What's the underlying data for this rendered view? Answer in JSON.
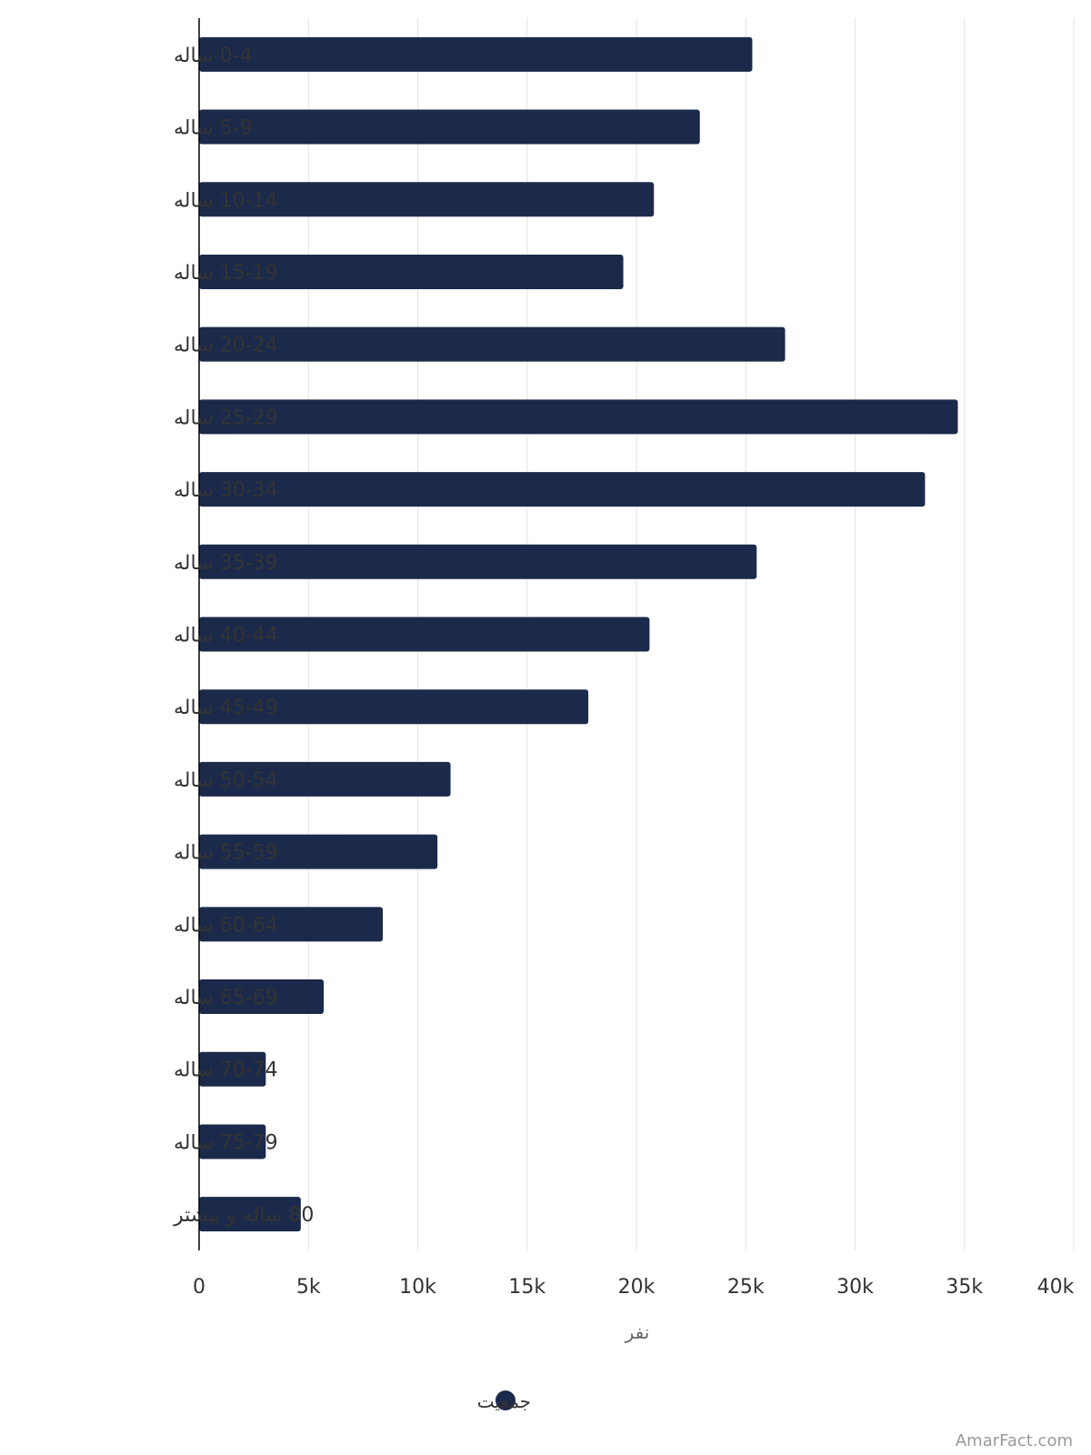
{
  "chart_data": {
    "type": "bar",
    "orientation": "horizontal",
    "categories": [
      "0-4 ساله",
      "5-9 ساله",
      "10-14 ساله",
      "15-19 ساله",
      "20-24 ساله",
      "25-29 ساله",
      "30-34 ساله",
      "35-39 ساله",
      "40-44 ساله",
      "45-49 ساله",
      "50-54 ساله",
      "55-59 ساله",
      "60-64 ساله",
      "65-69 ساله",
      "70-74 ساله",
      "75-79 ساله",
      "80 ساله و بیشتر"
    ],
    "series": [
      {
        "name": "جمعیت",
        "color": "#1b2a4a",
        "values": [
          25300,
          22900,
          20800,
          19400,
          26800,
          34700,
          33200,
          25500,
          20600,
          17800,
          11500,
          10900,
          8400,
          5700,
          3050,
          3050,
          4650
        ]
      }
    ],
    "x_ticks": [
      "0",
      "5k",
      "10k",
      "15k",
      "20k",
      "25k",
      "30k",
      "35k",
      "40k"
    ],
    "xlim": [
      0,
      40000
    ],
    "xlabel": "نفر",
    "ylabel": "",
    "title": "",
    "grid": "vertical",
    "legend_position": "bottom-center"
  },
  "watermark": "AmarFact.com"
}
